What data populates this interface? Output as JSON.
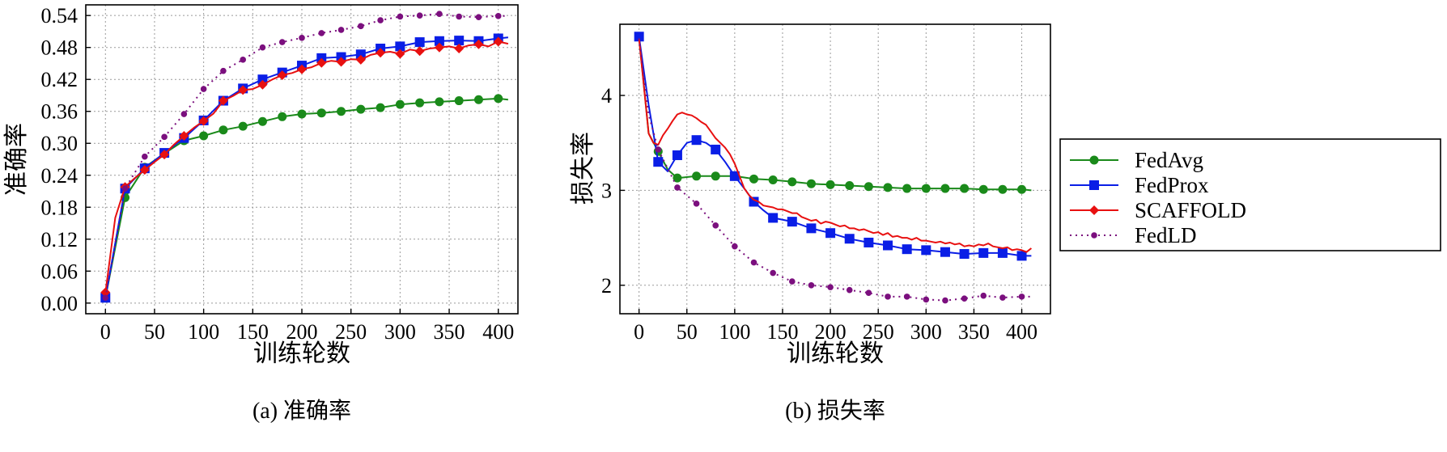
{
  "colors": {
    "FedAvg": "#1a8a1a",
    "FedProx": "#0a1ee6",
    "SCAFFOLD": "#e81010",
    "FedLD": "#7b0f7e"
  },
  "legend": {
    "entries": [
      "FedAvg",
      "FedProx",
      "SCAFFOLD",
      "FedLD"
    ],
    "placement": "right of panel (b)"
  },
  "chart_data": [
    {
      "type": "line",
      "caption": "(a) 准确率",
      "xlabel": "训练轮数",
      "ylabel": "准确率",
      "xlim": [
        -20,
        420
      ],
      "ylim": [
        -0.02,
        0.56
      ],
      "xticks": [
        0,
        50,
        100,
        150,
        200,
        250,
        300,
        350,
        400
      ],
      "xtick_labels": [
        "0",
        "50",
        "100",
        "150",
        "200",
        "250",
        "300",
        "350",
        "400"
      ],
      "yticks": [
        0.0,
        0.06,
        0.12,
        0.18,
        0.24,
        0.3,
        0.36,
        0.42,
        0.48,
        0.54
      ],
      "ytick_labels": [
        "0.00",
        "0.06",
        "0.12",
        "0.18",
        "0.24",
        "0.30",
        "0.36",
        "0.42",
        "0.48",
        "0.54"
      ],
      "grid": true,
      "series": [
        {
          "name": "FedAvg",
          "marker": "circle",
          "x": [
            0,
            20,
            40,
            60,
            80,
            100,
            120,
            140,
            160,
            180,
            200,
            220,
            240,
            260,
            280,
            300,
            320,
            340,
            360,
            380,
            400,
            410
          ],
          "y": [
            0.01,
            0.198,
            0.255,
            0.281,
            0.305,
            0.314,
            0.325,
            0.332,
            0.341,
            0.35,
            0.355,
            0.357,
            0.36,
            0.364,
            0.367,
            0.373,
            0.376,
            0.378,
            0.38,
            0.382,
            0.384,
            0.382
          ],
          "markers_x": [
            0,
            20,
            40,
            60,
            80,
            100,
            120,
            140,
            160,
            180,
            200,
            220,
            240,
            260,
            280,
            300,
            320,
            340,
            360,
            380,
            400
          ]
        },
        {
          "name": "FedProx",
          "marker": "square",
          "x": [
            0,
            20,
            40,
            60,
            80,
            100,
            120,
            140,
            160,
            180,
            200,
            220,
            240,
            260,
            280,
            300,
            320,
            340,
            360,
            380,
            400,
            410
          ],
          "y": [
            0.01,
            0.215,
            0.253,
            0.282,
            0.31,
            0.343,
            0.38,
            0.403,
            0.42,
            0.433,
            0.446,
            0.46,
            0.462,
            0.467,
            0.478,
            0.482,
            0.49,
            0.492,
            0.493,
            0.492,
            0.497,
            0.499
          ],
          "markers_x": [
            0,
            20,
            40,
            60,
            80,
            100,
            120,
            140,
            160,
            180,
            200,
            220,
            240,
            260,
            280,
            300,
            320,
            340,
            360,
            380,
            400
          ]
        },
        {
          "name": "SCAFFOLD",
          "marker": "diamond",
          "x": [
            0,
            10,
            20,
            30,
            40,
            50,
            60,
            70,
            80,
            90,
            100,
            110,
            120,
            130,
            140,
            150,
            160,
            170,
            180,
            190,
            200,
            210,
            220,
            230,
            240,
            250,
            260,
            270,
            280,
            290,
            300,
            310,
            320,
            330,
            340,
            350,
            360,
            370,
            380,
            390,
            400,
            410
          ],
          "y": [
            0.02,
            0.16,
            0.218,
            0.235,
            0.25,
            0.265,
            0.279,
            0.298,
            0.314,
            0.329,
            0.342,
            0.356,
            0.38,
            0.389,
            0.4,
            0.402,
            0.41,
            0.42,
            0.428,
            0.432,
            0.439,
            0.443,
            0.451,
            0.455,
            0.453,
            0.458,
            0.457,
            0.466,
            0.47,
            0.472,
            0.468,
            0.476,
            0.473,
            0.478,
            0.48,
            0.482,
            0.478,
            0.484,
            0.486,
            0.482,
            0.491,
            0.487
          ],
          "markers_x": [
            0,
            20,
            40,
            60,
            80,
            100,
            120,
            140,
            160,
            180,
            200,
            220,
            240,
            260,
            280,
            300,
            320,
            340,
            360,
            380,
            400
          ]
        },
        {
          "name": "FedLD",
          "marker": "dot",
          "x": [
            0,
            20,
            40,
            60,
            80,
            100,
            120,
            140,
            160,
            180,
            200,
            220,
            240,
            260,
            280,
            300,
            320,
            340,
            360,
            380,
            400,
            410
          ],
          "y": [
            0.01,
            0.215,
            0.275,
            0.312,
            0.355,
            0.402,
            0.436,
            0.457,
            0.48,
            0.49,
            0.498,
            0.507,
            0.513,
            0.52,
            0.531,
            0.538,
            0.54,
            0.543,
            0.538,
            0.537,
            0.539,
            0.539
          ],
          "markers_x": [
            0,
            20,
            40,
            60,
            80,
            100,
            120,
            140,
            160,
            180,
            200,
            220,
            240,
            260,
            280,
            300,
            320,
            340,
            360,
            380,
            400
          ]
        }
      ]
    },
    {
      "type": "line",
      "caption": "(b) 损失率",
      "xlabel": "训练轮数",
      "ylabel": "损失率",
      "xlim": [
        -20,
        430
      ],
      "ylim": [
        1.7,
        4.75
      ],
      "xticks": [
        0,
        50,
        100,
        150,
        200,
        250,
        300,
        350,
        400
      ],
      "xtick_labels": [
        "0",
        "50",
        "100",
        "150",
        "200",
        "250",
        "300",
        "350",
        "400"
      ],
      "yticks": [
        2,
        3,
        4
      ],
      "ytick_labels": [
        "2",
        "3",
        "4"
      ],
      "grid": true,
      "series": [
        {
          "name": "FedAvg",
          "marker": "circle",
          "x": [
            0,
            10,
            20,
            30,
            40,
            60,
            80,
            100,
            120,
            140,
            160,
            180,
            200,
            220,
            240,
            260,
            280,
            300,
            320,
            340,
            360,
            380,
            400,
            410
          ],
          "y": [
            4.62,
            3.6,
            3.41,
            3.22,
            3.13,
            3.15,
            3.15,
            3.15,
            3.12,
            3.11,
            3.09,
            3.07,
            3.06,
            3.05,
            3.04,
            3.03,
            3.02,
            3.02,
            3.02,
            3.02,
            3.01,
            3.01,
            3.01,
            3.0
          ],
          "markers_x": [
            20,
            40,
            60,
            80,
            100,
            120,
            140,
            160,
            180,
            200,
            220,
            240,
            260,
            280,
            300,
            320,
            340,
            360,
            380,
            400
          ]
        },
        {
          "name": "FedProx",
          "marker": "square",
          "x": [
            0,
            10,
            20,
            30,
            40,
            50,
            60,
            70,
            80,
            90,
            100,
            110,
            120,
            130,
            140,
            160,
            180,
            200,
            220,
            240,
            260,
            280,
            300,
            320,
            340,
            360,
            380,
            400,
            410
          ],
          "y": [
            4.62,
            3.9,
            3.3,
            3.2,
            3.37,
            3.5,
            3.53,
            3.5,
            3.43,
            3.3,
            3.15,
            3.02,
            2.88,
            2.79,
            2.71,
            2.67,
            2.6,
            2.55,
            2.49,
            2.45,
            2.42,
            2.38,
            2.37,
            2.35,
            2.33,
            2.34,
            2.34,
            2.31,
            2.31
          ],
          "markers_x": [
            0,
            20,
            40,
            60,
            80,
            100,
            120,
            140,
            160,
            180,
            200,
            220,
            240,
            260,
            280,
            300,
            320,
            340,
            360,
            380,
            400
          ]
        },
        {
          "name": "SCAFFOLD",
          "marker": "diamond",
          "x": [
            0,
            5,
            10,
            15,
            20,
            25,
            30,
            35,
            40,
            45,
            50,
            55,
            60,
            65,
            70,
            75,
            80,
            85,
            90,
            95,
            100,
            105,
            110,
            115,
            120,
            125,
            130,
            135,
            140,
            145,
            150,
            155,
            160,
            165,
            170,
            175,
            180,
            185,
            190,
            195,
            200,
            205,
            210,
            215,
            220,
            225,
            230,
            235,
            240,
            245,
            250,
            255,
            260,
            265,
            270,
            275,
            280,
            285,
            290,
            295,
            300,
            305,
            310,
            315,
            320,
            325,
            330,
            335,
            340,
            345,
            350,
            355,
            360,
            365,
            370,
            375,
            380,
            385,
            390,
            395,
            400,
            405,
            410
          ],
          "y": [
            4.6,
            4.1,
            3.6,
            3.5,
            3.48,
            3.58,
            3.65,
            3.73,
            3.8,
            3.82,
            3.8,
            3.79,
            3.76,
            3.72,
            3.69,
            3.62,
            3.55,
            3.5,
            3.45,
            3.38,
            3.28,
            3.15,
            3.02,
            2.95,
            2.9,
            2.88,
            2.84,
            2.83,
            2.82,
            2.8,
            2.8,
            2.78,
            2.76,
            2.76,
            2.72,
            2.7,
            2.68,
            2.69,
            2.65,
            2.67,
            2.66,
            2.64,
            2.62,
            2.63,
            2.6,
            2.6,
            2.58,
            2.59,
            2.57,
            2.55,
            2.56,
            2.53,
            2.55,
            2.51,
            2.52,
            2.5,
            2.5,
            2.48,
            2.5,
            2.47,
            2.47,
            2.46,
            2.45,
            2.46,
            2.44,
            2.45,
            2.43,
            2.44,
            2.41,
            2.42,
            2.41,
            2.43,
            2.42,
            2.44,
            2.41,
            2.4,
            2.39,
            2.4,
            2.37,
            2.38,
            2.37,
            2.35,
            2.39
          ],
          "markers_x": []
        },
        {
          "name": "FedLD",
          "marker": "dot",
          "x": [
            0,
            10,
            20,
            40,
            60,
            80,
            100,
            120,
            140,
            160,
            180,
            200,
            220,
            240,
            260,
            280,
            300,
            320,
            340,
            360,
            380,
            400,
            410
          ],
          "y": [
            4.6,
            3.8,
            3.43,
            3.03,
            2.86,
            2.63,
            2.41,
            2.24,
            2.13,
            2.04,
            2.0,
            1.98,
            1.95,
            1.92,
            1.88,
            1.88,
            1.85,
            1.84,
            1.86,
            1.89,
            1.87,
            1.88,
            1.88
          ],
          "markers_x": [
            20,
            40,
            60,
            80,
            100,
            120,
            140,
            160,
            180,
            200,
            220,
            240,
            260,
            280,
            300,
            320,
            340,
            360,
            380,
            400
          ]
        }
      ]
    }
  ]
}
